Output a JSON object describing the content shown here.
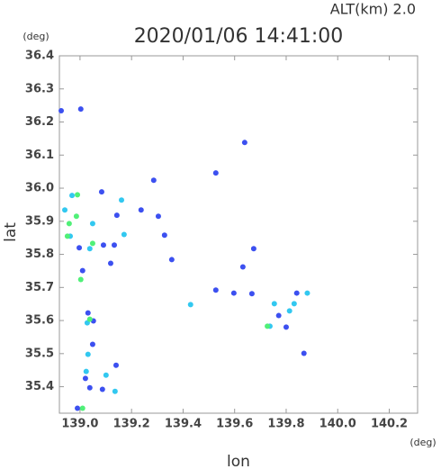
{
  "chart_data": {
    "type": "scatter",
    "title": "2020/01/06 14:41:00",
    "subtitle": "ALT(km) 2.0",
    "x_label": "lon",
    "y_label": "lat",
    "x_unit": "(deg)",
    "y_unit": "(deg)",
    "xlim": [
      138.92,
      140.31
    ],
    "ylim": [
      35.32,
      36.4
    ],
    "xticks": [
      {
        "value": 139.0,
        "label": "139.0"
      },
      139.2,
      139.4,
      139.6,
      139.8,
      {
        "value": 140.0,
        "label": "140.0"
      },
      140.2
    ],
    "yticks": [
      35.4,
      35.5,
      35.6,
      35.7,
      35.8,
      35.9,
      {
        "value": 36.0,
        "label": "36.0"
      },
      36.1,
      36.2,
      36.3,
      36.4
    ],
    "grid": false,
    "series": [
      {
        "color": "#3c50f0",
        "x": [
          138.927,
          139.003,
          139.286,
          139.527,
          139.639,
          139.084,
          139.304,
          139.237,
          139.328,
          139.091,
          139.133,
          138.997,
          139.119,
          139.356,
          139.632,
          139.674,
          139.527,
          139.597,
          139.01,
          139.031,
          139.052,
          139.049,
          139.021,
          139.038,
          139.087,
          139.14,
          139.8,
          139.841,
          139.771,
          139.869,
          139.667,
          138.99,
          139.143
        ],
        "y": [
          36.234,
          36.239,
          36.024,
          36.046,
          36.138,
          35.989,
          35.915,
          35.934,
          35.858,
          35.828,
          35.828,
          35.82,
          35.773,
          35.784,
          35.762,
          35.817,
          35.692,
          35.683,
          35.751,
          35.623,
          35.599,
          35.528,
          35.425,
          35.397,
          35.392,
          35.465,
          35.58,
          35.683,
          35.615,
          35.501,
          35.681,
          35.335,
          35.918
        ]
      },
      {
        "color": "#32c8f0",
        "x": [
          138.969,
          139.049,
          138.941,
          138.962,
          139.038,
          139.101,
          139.136,
          139.031,
          139.024,
          139.028,
          139.429,
          139.161,
          139.737,
          139.882,
          139.813,
          139.831,
          139.171,
          139.754
        ],
        "y": [
          35.978,
          35.893,
          35.934,
          35.855,
          35.817,
          35.435,
          35.386,
          35.498,
          35.446,
          35.593,
          35.648,
          35.964,
          35.583,
          35.683,
          35.629,
          35.651,
          35.86,
          35.651
        ]
      },
      {
        "color": "#50f078",
        "x": [
          138.99,
          138.958,
          139.003,
          139.049,
          139.01,
          138.951,
          139.038,
          139.727,
          138.986
        ],
        "y": [
          35.98,
          35.893,
          35.724,
          35.833,
          35.335,
          35.855,
          35.604,
          35.583,
          35.915
        ]
      }
    ]
  }
}
